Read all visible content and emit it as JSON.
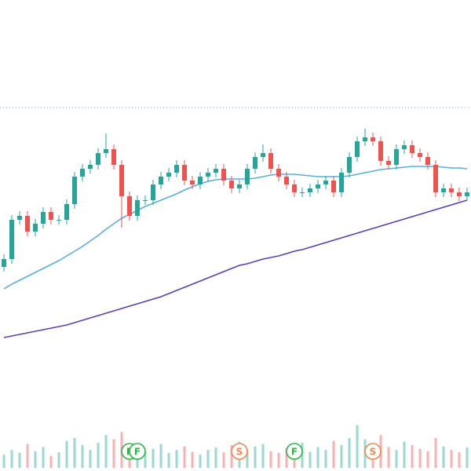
{
  "chart_data": {
    "type": "candlestick",
    "ylim": [
      0,
      600
    ],
    "up_color": "#26a69a",
    "down_color": "#ef5350",
    "reference_line": 463,
    "open": [
      260,
      270,
      320,
      325,
      305,
      315,
      330,
      320,
      320,
      340,
      375,
      385,
      390,
      405,
      410,
      390,
      350,
      325,
      345,
      345,
      365,
      375,
      380,
      390,
      370,
      365,
      375,
      380,
      385,
      370,
      360,
      365,
      385,
      400,
      405,
      385,
      375,
      365,
      355,
      355,
      360,
      365,
      370,
      355,
      380,
      400,
      420,
      425,
      420,
      395,
      390,
      410,
      415,
      405,
      400,
      390,
      355,
      360,
      355,
      350
    ],
    "high": [
      276,
      326,
      331,
      331,
      321,
      336,
      336,
      326,
      346,
      381,
      391,
      396,
      411,
      430,
      416,
      396,
      356,
      351,
      351,
      371,
      381,
      386,
      396,
      396,
      376,
      381,
      386,
      391,
      391,
      376,
      371,
      391,
      406,
      416,
      411,
      391,
      381,
      371,
      361,
      366,
      371,
      376,
      376,
      386,
      406,
      426,
      436,
      431,
      426,
      401,
      416,
      421,
      421,
      411,
      406,
      396,
      366,
      366,
      361,
      361
    ],
    "low": [
      254,
      264,
      314,
      299,
      299,
      309,
      314,
      314,
      314,
      334,
      369,
      379,
      384,
      399,
      384,
      310,
      319,
      319,
      339,
      339,
      359,
      369,
      374,
      364,
      359,
      359,
      369,
      374,
      364,
      354,
      354,
      359,
      379,
      394,
      379,
      369,
      359,
      349,
      349,
      349,
      354,
      359,
      349,
      349,
      374,
      394,
      414,
      414,
      389,
      384,
      384,
      404,
      399,
      394,
      384,
      349,
      349,
      349,
      344,
      344
    ],
    "close": [
      270,
      320,
      325,
      305,
      315,
      330,
      320,
      320,
      340,
      375,
      385,
      390,
      405,
      410,
      390,
      350,
      325,
      345,
      345,
      365,
      375,
      380,
      390,
      370,
      365,
      375,
      380,
      385,
      370,
      360,
      365,
      385,
      400,
      405,
      385,
      375,
      365,
      355,
      355,
      360,
      365,
      370,
      355,
      380,
      400,
      420,
      425,
      420,
      395,
      390,
      410,
      415,
      405,
      400,
      390,
      355,
      360,
      355,
      350,
      355
    ],
    "moving_averages": [
      {
        "color": "#5aaed6",
        "values": [
          232,
          238,
          243,
          248,
          253,
          258,
          263,
          268,
          274,
          280,
          286,
          293,
          300,
          308,
          315,
          322,
          327,
          332,
          337,
          341,
          345,
          349,
          353,
          358,
          362,
          366,
          369,
          371,
          372,
          372,
          372,
          372,
          373,
          375,
          377,
          378,
          378,
          378,
          377,
          376,
          375,
          375,
          375,
          375,
          376,
          378,
          380,
          382,
          384,
          385,
          386,
          387,
          388,
          388,
          388,
          388,
          387,
          386,
          386,
          385
        ]
      },
      {
        "color": "#5b3fb0",
        "values": [
          170,
          172,
          174,
          176,
          178,
          180,
          182,
          184,
          186,
          189,
          192,
          195,
          198,
          201,
          204,
          207,
          210,
          213,
          216,
          219,
          222,
          226,
          230,
          234,
          238,
          242,
          246,
          250,
          254,
          258,
          262,
          264,
          267,
          270,
          272,
          274,
          277,
          280,
          282,
          285,
          288,
          291,
          294,
          297,
          300,
          303,
          306,
          309,
          312,
          315,
          318,
          321,
          324,
          327,
          330,
          333,
          336,
          339,
          342,
          345
        ]
      }
    ],
    "volume_ylim": [
      0,
      100
    ],
    "volume": [
      22,
      30,
      25,
      40,
      28,
      35,
      20,
      26,
      45,
      50,
      38,
      30,
      42,
      55,
      48,
      60,
      35,
      30,
      28,
      32,
      40,
      25,
      30,
      36,
      27,
      22,
      30,
      34,
      26,
      38,
      44,
      30,
      36,
      40,
      28,
      25,
      33,
      30,
      42,
      27,
      35,
      30,
      45,
      38,
      50,
      72,
      48,
      40,
      55,
      35,
      30,
      44,
      38,
      32,
      28,
      50,
      36,
      30,
      26,
      34
    ],
    "events": [
      {
        "label": "F",
        "index": 16
      },
      {
        "label": "F",
        "index": 17
      },
      {
        "label": "S",
        "index": 30
      },
      {
        "label": "F",
        "index": 37
      },
      {
        "label": "S",
        "index": 47
      }
    ]
  }
}
